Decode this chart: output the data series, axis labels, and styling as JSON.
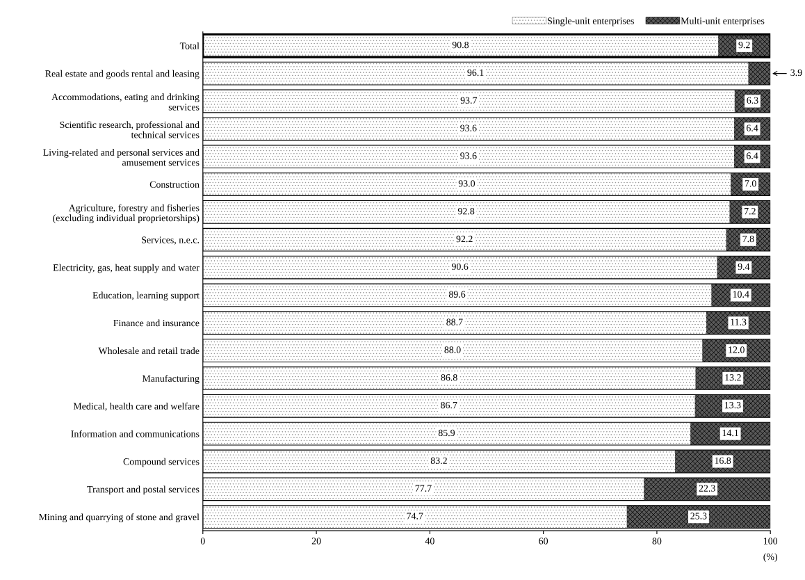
{
  "chart_data": {
    "type": "bar",
    "orientation": "horizontal",
    "stacked": true,
    "categories": [
      "Total",
      "Real estate and goods rental and leasing",
      "Accommodations, eating and drinking services",
      "Scientific research, professional and technical services",
      "Living-related and personal services and amusement services",
      "Construction",
      "Agriculture, forestry and fisheries (excluding individual proprietorships)",
      "Services, n.e.c.",
      "Electricity, gas, heat supply and water",
      "Education, learning support",
      "Finance and insurance",
      "Wholesale and retail trade",
      "Manufacturing",
      "Medical, health care and welfare",
      "Information and communications",
      "Compound services",
      "Transport and postal services",
      "Mining and quarrying of stone and gravel"
    ],
    "series": [
      {
        "name": "Single-unit enterprises",
        "color": "#ffffff",
        "values": [
          90.8,
          96.1,
          93.7,
          93.6,
          93.6,
          93.0,
          92.8,
          92.2,
          90.6,
          89.6,
          88.7,
          88.0,
          86.8,
          86.7,
          85.9,
          83.2,
          77.7,
          74.7
        ],
        "value_labels": [
          "90.8",
          "96.1",
          "93.7",
          "93.6",
          "93.6",
          "93.0",
          "92.8",
          "92.2",
          "90.6",
          "89.6",
          "88.7",
          "88.0",
          "86.8",
          "86.7",
          "85.9",
          "83.2",
          "77.7",
          "74.7"
        ]
      },
      {
        "name": "Multi-unit enterprises",
        "color": "#595959",
        "values": [
          9.2,
          3.9,
          6.3,
          6.4,
          6.4,
          7.0,
          7.2,
          7.8,
          9.4,
          10.4,
          11.3,
          12.0,
          13.2,
          13.3,
          14.1,
          16.8,
          22.3,
          25.3
        ],
        "value_labels": [
          "9.2",
          "3.9",
          "6.3",
          "6.4",
          "6.4",
          "7.0",
          "7.2",
          "7.8",
          "9.4",
          "10.4",
          "11.3",
          "12.0",
          "13.2",
          "13.3",
          "14.1",
          "16.8",
          "22.3",
          "25.3"
        ]
      }
    ],
    "xlim": [
      0,
      100
    ],
    "xticks": [
      0,
      20,
      40,
      60,
      80,
      100
    ],
    "xlabel": "(%)",
    "legend": "top right",
    "grid": false
  }
}
